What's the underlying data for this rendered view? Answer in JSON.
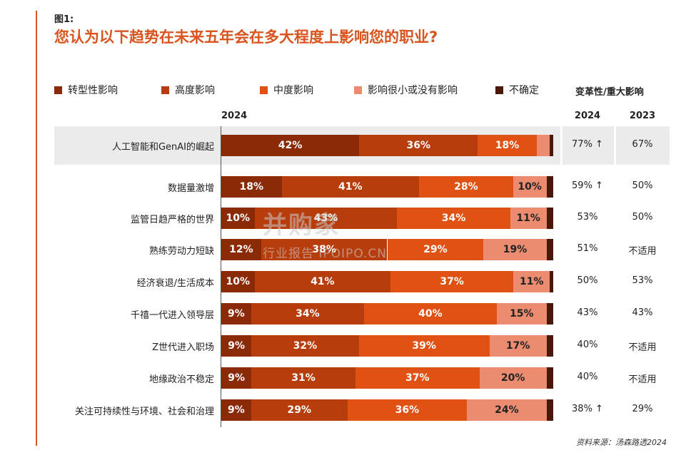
{
  "figure_label": "图1:",
  "title": "您认为以下趋势在未来五年会在多大程度上影响您的职业?",
  "legend": [
    {
      "label": "转型性影响",
      "color": "#8a2a07"
    },
    {
      "label": "高度影响",
      "color": "#b83d0c"
    },
    {
      "label": "中度影响",
      "color": "#df5214"
    },
    {
      "label": "影响很小或没有影响",
      "color": "#eb8c70"
    },
    {
      "label": "不确定",
      "color": "#4a1708"
    }
  ],
  "metric_header": "变革性/重大影响",
  "year_bar": "2024",
  "year_2024": "2024",
  "year_2023": "2023",
  "source": "资料来源：汤森路透2024",
  "watermark": {
    "main": "并购家",
    "sub": "行业报告 IPOIPO.CN"
  },
  "chart_data": {
    "type": "bar",
    "orientation": "horizontal",
    "stacked": true,
    "title": "您认为以下趋势在未来五年会在多大程度上影响您的职业?",
    "categories": [
      "人工智能和GenAI的崛起",
      "数据量激增",
      "监管日趋严格的世界",
      "熟练劳动力短缺",
      "经济衰退/生活成本",
      "千禧一代进入领导层",
      "Z世代进入职场",
      "地缘政治不稳定",
      "关注可持续性与环境、社会和治理"
    ],
    "series": [
      {
        "name": "转型性影响",
        "color": "#8a2a07",
        "values": [
          42,
          18,
          10,
          12,
          10,
          9,
          9,
          9,
          9
        ]
      },
      {
        "name": "高度影响",
        "color": "#b83d0c",
        "values": [
          36,
          41,
          43,
          38,
          41,
          34,
          32,
          31,
          29
        ]
      },
      {
        "name": "中度影响",
        "color": "#df5214",
        "values": [
          18,
          28,
          34,
          29,
          37,
          40,
          39,
          37,
          36
        ]
      },
      {
        "name": "影响很小或没有影响",
        "color": "#eb8c70",
        "values": [
          4,
          10,
          11,
          19,
          11,
          15,
          17,
          20,
          24
        ]
      },
      {
        "name": "不确定",
        "color": "#4a1708",
        "values": [
          1,
          2,
          2,
          2,
          1,
          2,
          2,
          2,
          2
        ]
      }
    ],
    "segment_labels": [
      [
        "42%",
        "36%",
        "18%",
        "",
        ""
      ],
      [
        "18%",
        "41%",
        "28%",
        "10%",
        ""
      ],
      [
        "10%",
        "43%",
        "34%",
        "11%",
        ""
      ],
      [
        "12%",
        "38%",
        "29%",
        "19%",
        ""
      ],
      [
        "10%",
        "41%",
        "37%",
        "11%",
        ""
      ],
      [
        "9%",
        "34%",
        "40%",
        "15%",
        ""
      ],
      [
        "9%",
        "32%",
        "39%",
        "17%",
        ""
      ],
      [
        "9%",
        "31%",
        "37%",
        "20%",
        ""
      ],
      [
        "9%",
        "29%",
        "36%",
        "24%",
        ""
      ]
    ],
    "metric_2024": [
      "77% ↑",
      "59% ↑",
      "53%",
      "51%",
      "50%",
      "43%",
      "40%",
      "40%",
      "38% ↑"
    ],
    "metric_2023": [
      "67%",
      "50%",
      "50%",
      "不适用",
      "53%",
      "43%",
      "不适用",
      "不适用",
      "29%"
    ],
    "highlighted_category": "人工智能和GenAI的崛起",
    "xlim": [
      0,
      100
    ],
    "grid": false,
    "legend_position": "top"
  }
}
